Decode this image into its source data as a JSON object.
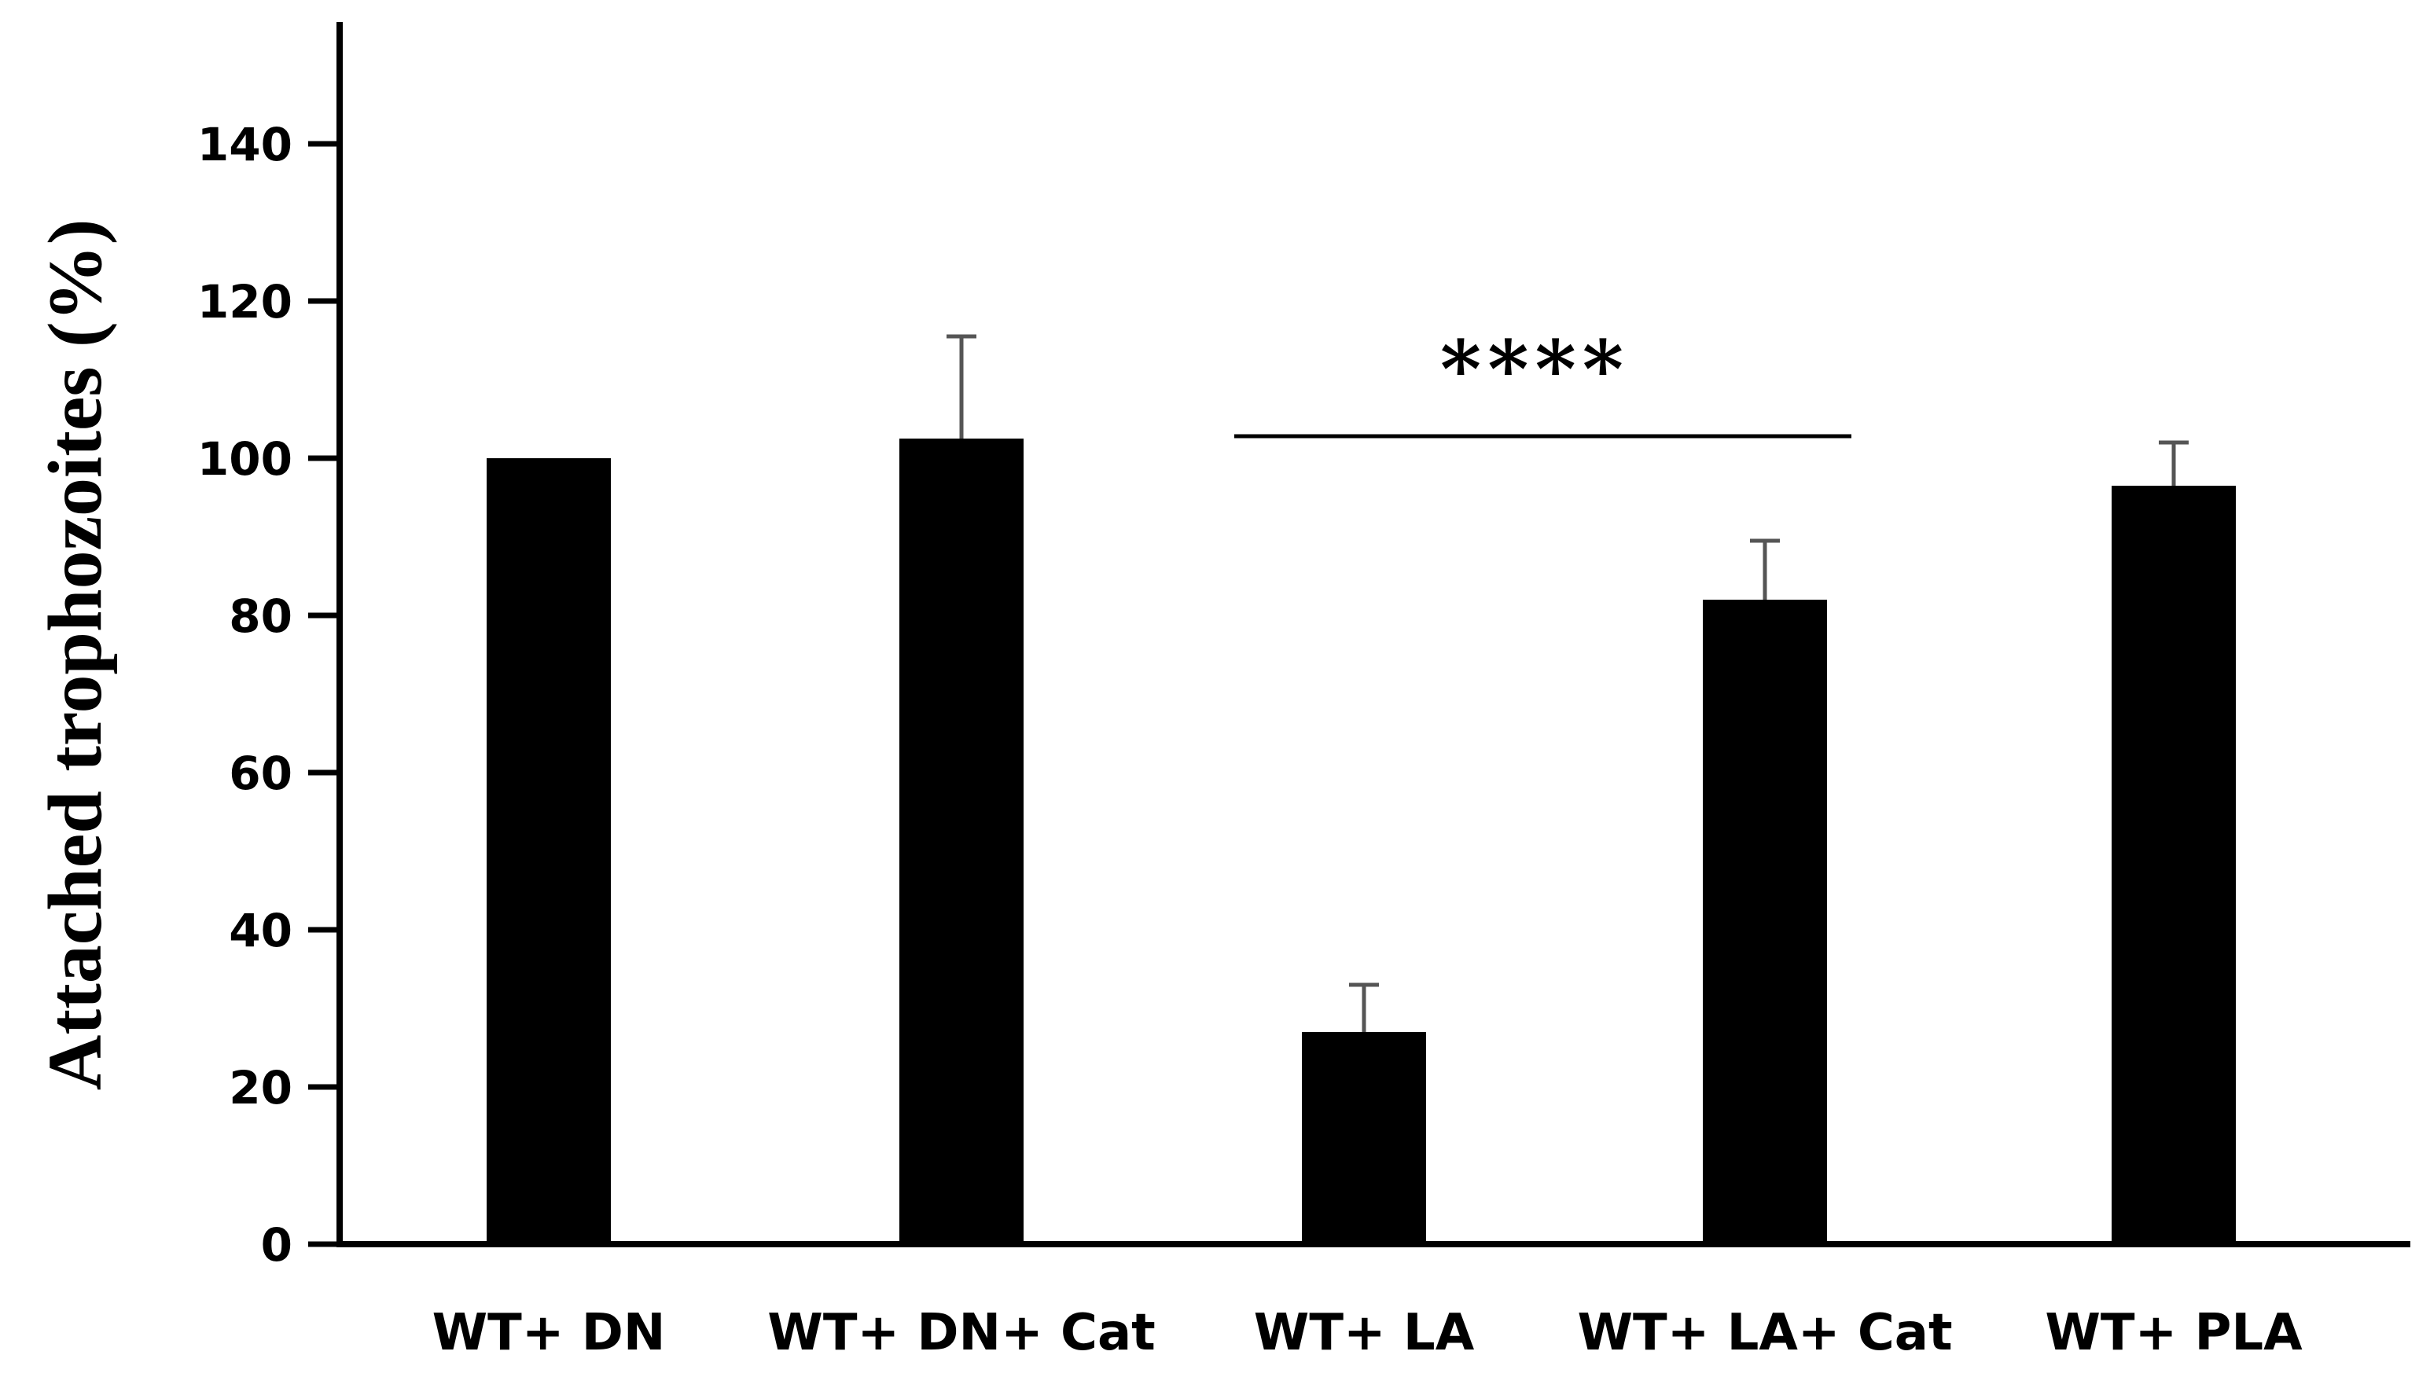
{
  "chart_data": {
    "type": "bar",
    "title": "",
    "xlabel": "",
    "ylabel": "Attached trophozoites (%)",
    "ylim": [
      0,
      155
    ],
    "yticks": [
      0,
      20,
      40,
      60,
      80,
      100,
      120,
      140
    ],
    "categories": [
      "WT+ DN",
      "WT+ DN+ Cat",
      "WT+ LA",
      "WT+ LA+ Cat",
      "WT+ PLA"
    ],
    "values": [
      100,
      102.5,
      27,
      82,
      96.5
    ],
    "errors": [
      0,
      13,
      6,
      7.5,
      5.5
    ],
    "bar_color": "#000000",
    "error_color": "#555555",
    "significance": {
      "label": "****",
      "from_category": "WT+ LA",
      "to_category": "WT+ LA+ Cat",
      "y": 103
    }
  }
}
